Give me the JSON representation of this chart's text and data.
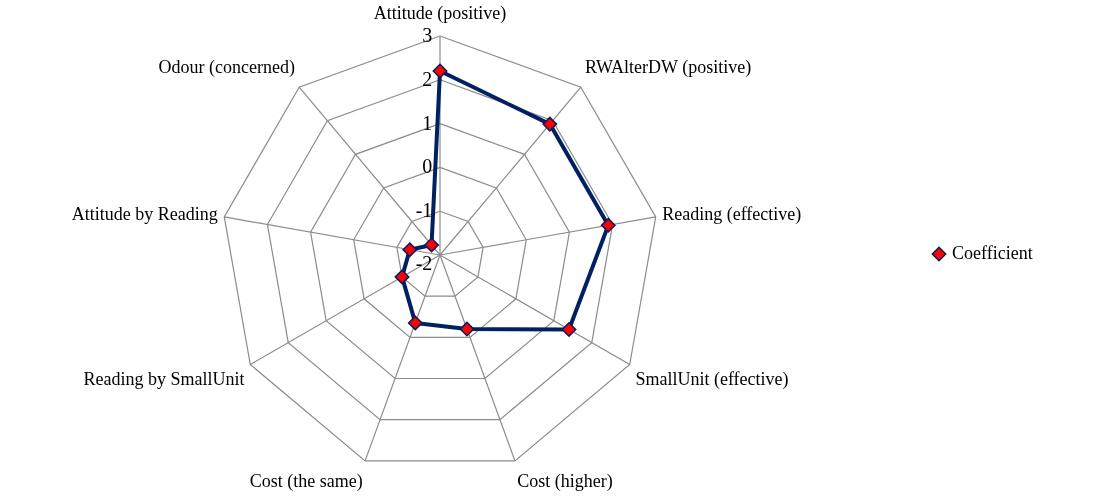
{
  "chart_data": {
    "type": "radar",
    "categories": [
      "Attitude (positive)",
      "RWAlterDW  (positive)",
      "Reading (effective)",
      "SmallUnit (effective)",
      "Cost (higher)",
      "Cost (the same)",
      "Reading by SmallUnit",
      "Attitude by Reading",
      "Odour (concerned)"
    ],
    "series": [
      {
        "name": "Coefficient",
        "color": "#002060",
        "values": [
          2.2,
          1.9,
          1.9,
          1.4,
          -0.2,
          -0.35,
          -1.0,
          -1.3,
          -1.7
        ]
      }
    ],
    "ylim": [
      -2,
      3
    ],
    "yticks": [
      -2,
      -1,
      0,
      1,
      2,
      3
    ],
    "grid": true,
    "legend": "right",
    "marker": "diamond",
    "line_style": "solid"
  }
}
